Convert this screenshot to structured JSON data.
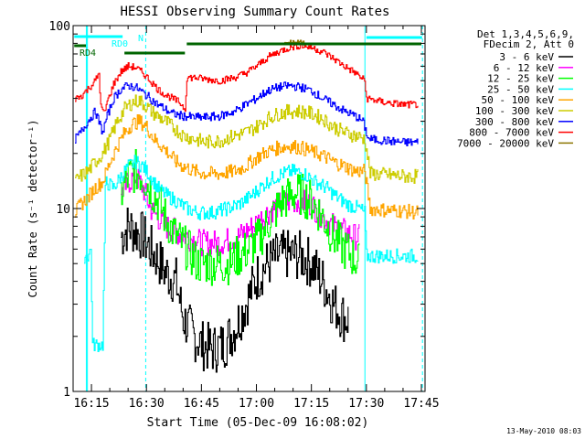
{
  "chart_data": {
    "type": "line",
    "title": "HESSI Observing Summary Count Rates",
    "xlabel": "Start Time (05-Dec-09 16:08:02)",
    "ylabel": "Count Rate (s⁻¹ detector⁻¹)",
    "yscale": "log",
    "ylim": [
      1,
      100
    ],
    "xlim_minutes": [
      10,
      106
    ],
    "x_unit": "minutes after 16:00 UT",
    "x_ticks": [
      {
        "t": 15,
        "label": "16:15"
      },
      {
        "t": 30,
        "label": "16:30"
      },
      {
        "t": 45,
        "label": "16:45"
      },
      {
        "t": 60,
        "label": "17:00"
      },
      {
        "t": 75,
        "label": "17:15"
      },
      {
        "t": 90,
        "label": "17:30"
      },
      {
        "t": 105,
        "label": "17:45"
      }
    ],
    "y_ticks": [
      {
        "v": 1,
        "label": "1"
      },
      {
        "v": 10,
        "label": "10"
      },
      {
        "v": 100,
        "label": "100"
      }
    ],
    "legend": {
      "placement": "right",
      "header": [
        "Det 1,3,4,5,6,9,",
        "FDecim 2, Att 0"
      ]
    },
    "series": [
      {
        "name": "3 - 6 keV",
        "color": "#000000",
        "noise": 0.35,
        "points": [
          [
            23,
            7
          ],
          [
            25,
            8
          ],
          [
            27,
            7.5
          ],
          [
            29,
            7
          ],
          [
            31,
            6
          ],
          [
            33,
            5.3
          ],
          [
            35,
            4.5
          ],
          [
            38,
            4
          ],
          [
            40,
            2.5
          ],
          [
            43,
            2
          ],
          [
            45,
            1.8
          ],
          [
            48,
            1.7
          ],
          [
            51,
            1.8
          ],
          [
            54,
            2.2
          ],
          [
            57,
            3
          ],
          [
            60,
            4.2
          ],
          [
            63,
            5
          ],
          [
            66,
            5.5
          ],
          [
            69,
            5.6
          ],
          [
            72,
            5.5
          ],
          [
            75,
            5
          ],
          [
            78,
            4
          ],
          [
            81,
            3
          ],
          [
            84,
            2.5
          ],
          [
            85,
            2.5
          ]
        ]
      },
      {
        "name": "6 - 12 keV",
        "color": "#ff00ff",
        "noise": 0.18,
        "points": [
          [
            23,
            12
          ],
          [
            25,
            14
          ],
          [
            27,
            15
          ],
          [
            29,
            13
          ],
          [
            31,
            10
          ],
          [
            33,
            9
          ],
          [
            35,
            8
          ],
          [
            38,
            7.5
          ],
          [
            41,
            7
          ],
          [
            45,
            6.5
          ],
          [
            50,
            6.5
          ],
          [
            55,
            7
          ],
          [
            59,
            8
          ],
          [
            63,
            9.5
          ],
          [
            66,
            10.5
          ],
          [
            69,
            11
          ],
          [
            72,
            11
          ],
          [
            75,
            10.5
          ],
          [
            78,
            9
          ],
          [
            81,
            8
          ],
          [
            84,
            7.5
          ],
          [
            87,
            7
          ],
          [
            88,
            7
          ]
        ]
      },
      {
        "name": "12 - 25 keV",
        "color": "#00ff00",
        "noise": 0.3,
        "points": [
          [
            23,
            12
          ],
          [
            25,
            15
          ],
          [
            27,
            16
          ],
          [
            29,
            15
          ],
          [
            31,
            13
          ],
          [
            33,
            11
          ],
          [
            35,
            9
          ],
          [
            38,
            7
          ],
          [
            41,
            6
          ],
          [
            44,
            5
          ],
          [
            48,
            5
          ],
          [
            52,
            5
          ],
          [
            55,
            5.5
          ],
          [
            58,
            6
          ],
          [
            61,
            7
          ],
          [
            64,
            9
          ],
          [
            67,
            11
          ],
          [
            70,
            12
          ],
          [
            72,
            12
          ],
          [
            75,
            11
          ],
          [
            78,
            9
          ],
          [
            81,
            7
          ],
          [
            84,
            6
          ],
          [
            86,
            5.5
          ],
          [
            88,
            5
          ]
        ]
      },
      {
        "name": "25 - 50 keV",
        "color": "#00ffff",
        "noise": 0.1,
        "points": [
          [
            13,
            5.5
          ],
          [
            14,
            5.5
          ],
          [
            14.8,
            6
          ],
          [
            15.2,
            1.8
          ],
          [
            18,
            1.8
          ],
          [
            18.8,
            14
          ],
          [
            21,
            13
          ],
          [
            23,
            15
          ],
          [
            25,
            17
          ],
          [
            27,
            18
          ],
          [
            29,
            17
          ],
          [
            31,
            15
          ],
          [
            33,
            13
          ],
          [
            35,
            12
          ],
          [
            38,
            11
          ],
          [
            41,
            10
          ],
          [
            44,
            9.5
          ],
          [
            48,
            9.5
          ],
          [
            52,
            10
          ],
          [
            55,
            10.5
          ],
          [
            58,
            11.5
          ],
          [
            61,
            13
          ],
          [
            64,
            14.5
          ],
          [
            67,
            15.5
          ],
          [
            70,
            16
          ],
          [
            73,
            15.5
          ],
          [
            76,
            14
          ],
          [
            79,
            13
          ],
          [
            82,
            11.5
          ],
          [
            85,
            10.5
          ],
          [
            88,
            10
          ],
          [
            89.5,
            9.5
          ],
          [
            90,
            5.5
          ],
          [
            92,
            5.5
          ],
          [
            96,
            5.5
          ],
          [
            100,
            5.5
          ],
          [
            104,
            5.5
          ]
        ]
      },
      {
        "name": "50 - 100 keV",
        "color": "#ffa500",
        "noise": 0.1,
        "points": [
          [
            10.5,
            9.5
          ],
          [
            12,
            10.5
          ],
          [
            14,
            11.5
          ],
          [
            16,
            13
          ],
          [
            18,
            14
          ],
          [
            20,
            18
          ],
          [
            22,
            22
          ],
          [
            24,
            26
          ],
          [
            26,
            29
          ],
          [
            28,
            30
          ],
          [
            30,
            28
          ],
          [
            32,
            24
          ],
          [
            34,
            22
          ],
          [
            36,
            20
          ],
          [
            38,
            18
          ],
          [
            40,
            17
          ],
          [
            43,
            16
          ],
          [
            46,
            15.5
          ],
          [
            50,
            15.5
          ],
          [
            54,
            16
          ],
          [
            57,
            17
          ],
          [
            60,
            19
          ],
          [
            63,
            20.5
          ],
          [
            66,
            21.5
          ],
          [
            69,
            22
          ],
          [
            72,
            21.5
          ],
          [
            75,
            20.5
          ],
          [
            78,
            19.5
          ],
          [
            81,
            18
          ],
          [
            84,
            17
          ],
          [
            87,
            16
          ],
          [
            89.5,
            16
          ],
          [
            91,
            10
          ],
          [
            95,
            9.8
          ],
          [
            100,
            9.7
          ],
          [
            104,
            9.5
          ]
        ]
      },
      {
        "name": "100 - 300 keV",
        "color": "#cccc00",
        "noise": 0.1,
        "points": [
          [
            10.5,
            14
          ],
          [
            12,
            15
          ],
          [
            14,
            16
          ],
          [
            16,
            18
          ],
          [
            18,
            20
          ],
          [
            20,
            24
          ],
          [
            22,
            30
          ],
          [
            24,
            35
          ],
          [
            26,
            38
          ],
          [
            28,
            39
          ],
          [
            30,
            36
          ],
          [
            32,
            33
          ],
          [
            34,
            31
          ],
          [
            36,
            29
          ],
          [
            38,
            27
          ],
          [
            40,
            25
          ],
          [
            43,
            24
          ],
          [
            46,
            23
          ],
          [
            50,
            23.5
          ],
          [
            54,
            25
          ],
          [
            57,
            26
          ],
          [
            60,
            28
          ],
          [
            63,
            31
          ],
          [
            66,
            33
          ],
          [
            69,
            34
          ],
          [
            72,
            34
          ],
          [
            75,
            33
          ],
          [
            78,
            31
          ],
          [
            81,
            28
          ],
          [
            84,
            26
          ],
          [
            87,
            25
          ],
          [
            89.5,
            24
          ],
          [
            91,
            15.5
          ],
          [
            95,
            15.3
          ],
          [
            100,
            15
          ],
          [
            104,
            15
          ]
        ]
      },
      {
        "name": "300 - 800 keV",
        "color": "#0000ff",
        "noise": 0.06,
        "points": [
          [
            10.5,
            24
          ],
          [
            12,
            26
          ],
          [
            14,
            30
          ],
          [
            16,
            34
          ],
          [
            18,
            26
          ],
          [
            19,
            31
          ],
          [
            21,
            40
          ],
          [
            23,
            45
          ],
          [
            25,
            47
          ],
          [
            27,
            46
          ],
          [
            29,
            43
          ],
          [
            31,
            40
          ],
          [
            33,
            37
          ],
          [
            35,
            35
          ],
          [
            37,
            33
          ],
          [
            40,
            32
          ],
          [
            43,
            31.5
          ],
          [
            46,
            31.5
          ],
          [
            50,
            32
          ],
          [
            54,
            34
          ],
          [
            57,
            37
          ],
          [
            60,
            40
          ],
          [
            63,
            44
          ],
          [
            66,
            46
          ],
          [
            69,
            47
          ],
          [
            72,
            46
          ],
          [
            75,
            44
          ],
          [
            78,
            40
          ],
          [
            81,
            37
          ],
          [
            84,
            34
          ],
          [
            87,
            32
          ],
          [
            89,
            30
          ],
          [
            90.5,
            24
          ],
          [
            95,
            23.5
          ],
          [
            100,
            23
          ],
          [
            104,
            23
          ]
        ]
      },
      {
        "name": "800 - 7000 keV",
        "color": "#ff0000",
        "noise": 0.05,
        "points": [
          [
            10.5,
            40
          ],
          [
            12,
            41
          ],
          [
            14,
            45
          ],
          [
            16,
            50
          ],
          [
            17,
            55
          ],
          [
            17.5,
            36
          ],
          [
            18.5,
            33
          ],
          [
            19,
            37
          ],
          [
            21,
            48
          ],
          [
            23,
            56
          ],
          [
            25,
            60
          ],
          [
            27,
            59
          ],
          [
            29,
            55
          ],
          [
            31,
            50
          ],
          [
            33,
            45
          ],
          [
            35,
            42
          ],
          [
            37,
            40
          ],
          [
            39,
            38
          ],
          [
            40.5,
            35
          ],
          [
            41,
            52
          ],
          [
            43,
            52
          ],
          [
            46,
            51
          ],
          [
            50,
            50
          ],
          [
            54,
            52
          ],
          [
            57,
            55
          ],
          [
            60,
            60
          ],
          [
            63,
            67
          ],
          [
            66,
            72
          ],
          [
            69,
            76
          ],
          [
            72,
            78
          ],
          [
            75,
            76
          ],
          [
            78,
            72
          ],
          [
            81,
            66
          ],
          [
            84,
            60
          ],
          [
            87,
            55
          ],
          [
            89.5,
            50
          ],
          [
            90,
            40
          ],
          [
            95,
            38
          ],
          [
            100,
            37
          ],
          [
            104,
            37
          ]
        ]
      },
      {
        "name": "7000 - 20000 keV",
        "color": "#8b7500",
        "noise": 0.04,
        "points": [
          [
            67,
            77
          ],
          [
            69,
            80
          ],
          [
            71,
            82
          ],
          [
            73,
            80
          ]
        ]
      }
    ],
    "annotations": [
      {
        "text": "RD0",
        "color": "#00ffff"
      },
      {
        "text": "RD4",
        "color": "#006400"
      },
      {
        "text": "N",
        "color": "#00ffff"
      }
    ],
    "timestamp": "13-May-2010 08:03"
  }
}
